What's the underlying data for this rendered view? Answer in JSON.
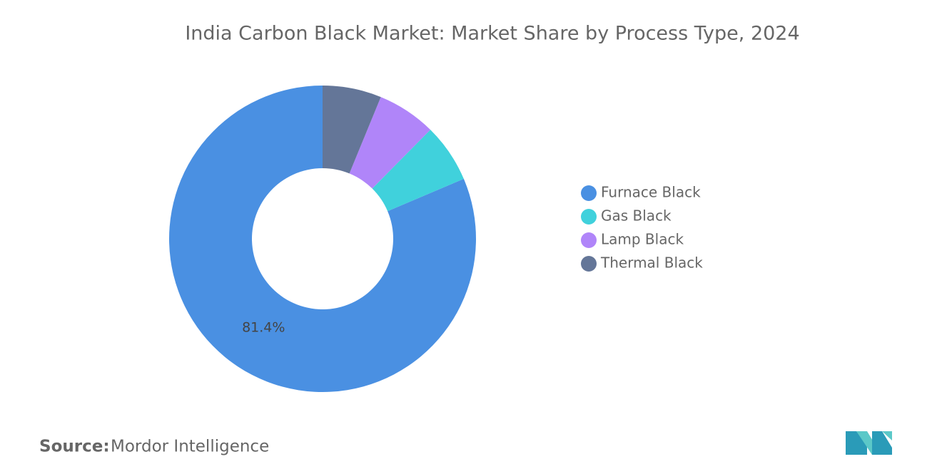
{
  "chart_data": {
    "type": "donut",
    "title": "India Carbon Black Market: Market Share by Process Type, 2024",
    "categories": [
      "Furnace Black",
      "Gas Black",
      "Lamp Black",
      "Thermal Black"
    ],
    "values": [
      81.4,
      6.2,
      6.2,
      6.2
    ],
    "value_labels": [
      "81.4%",
      null,
      null,
      null
    ],
    "colors": [
      "#4a90e2",
      "#40d1dc",
      "#b085f9",
      "#647698"
    ],
    "legend": "right",
    "source_label": "Source:",
    "source": "Mordor Intelligence"
  }
}
